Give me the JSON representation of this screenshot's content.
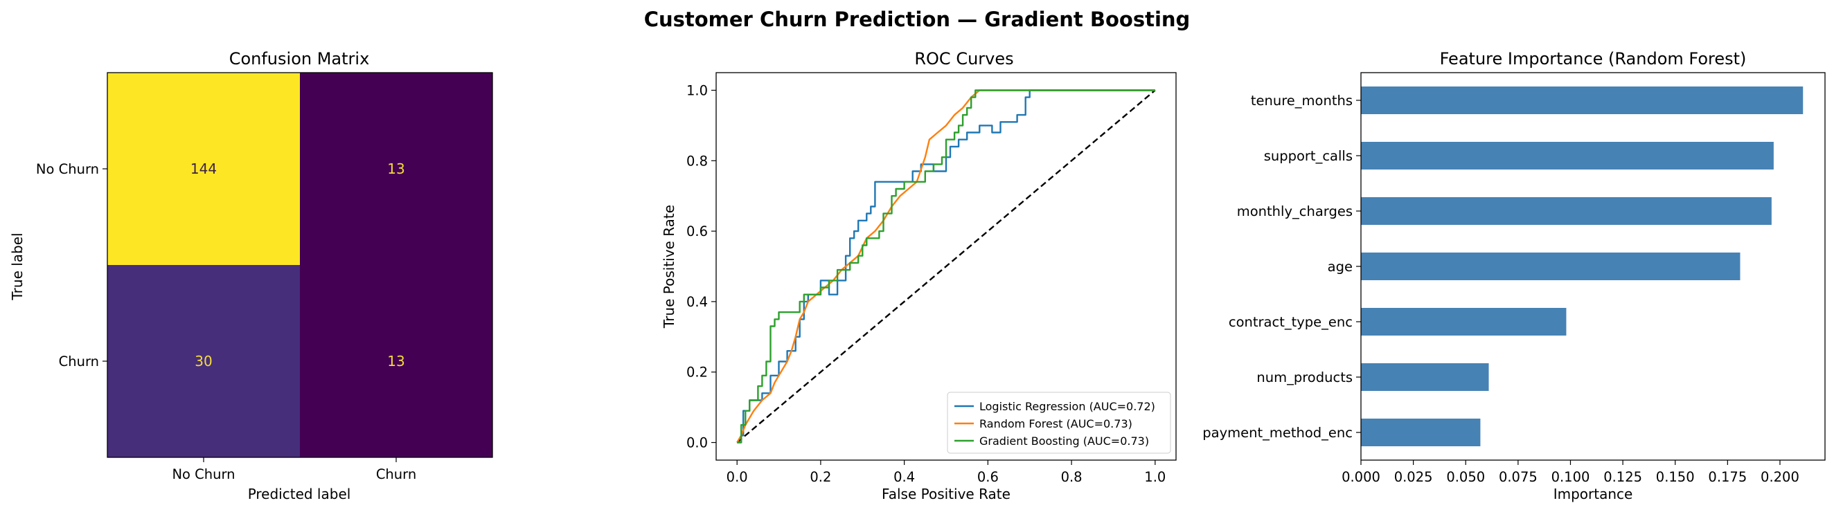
{
  "figure": {
    "title": "Customer Churn Prediction — Gradient Boosting"
  },
  "chart_data": [
    {
      "type": "heatmap",
      "title": "Confusion Matrix",
      "xlabel": "Predicted label",
      "ylabel": "True label",
      "row_labels": [
        "No Churn",
        "Churn"
      ],
      "col_labels": [
        "No Churn",
        "Churn"
      ],
      "values": [
        [
          144,
          13
        ],
        [
          30,
          13
        ]
      ],
      "colormap": "viridis",
      "vmin": 13,
      "vmax": 144
    },
    {
      "type": "line",
      "title": "ROC Curves",
      "xlabel": "False Positive Rate",
      "ylabel": "True Positive Rate",
      "xlim": [
        -0.05,
        1.05
      ],
      "ylim": [
        -0.05,
        1.05
      ],
      "xticks": [
        "0.0",
        "0.2",
        "0.4",
        "0.6",
        "0.8",
        "1.0"
      ],
      "yticks": [
        "0.0",
        "0.2",
        "0.4",
        "0.6",
        "0.8",
        "1.0"
      ],
      "legend_position": "lower-right",
      "diagonal": {
        "style": "dashed",
        "color": "#000000"
      },
      "series": [
        {
          "name": "Logistic Regression (AUC=0.72)",
          "color": "#1f77b4",
          "points": [
            [
              0,
              0
            ],
            [
              0.01,
              0
            ],
            [
              0.01,
              0.02
            ],
            [
              0.015,
              0.02
            ],
            [
              0.015,
              0.09
            ],
            [
              0.03,
              0.09
            ],
            [
              0.03,
              0.12
            ],
            [
              0.06,
              0.12
            ],
            [
              0.06,
              0.14
            ],
            [
              0.08,
              0.14
            ],
            [
              0.08,
              0.19
            ],
            [
              0.1,
              0.19
            ],
            [
              0.1,
              0.23
            ],
            [
              0.12,
              0.23
            ],
            [
              0.12,
              0.26
            ],
            [
              0.14,
              0.26
            ],
            [
              0.14,
              0.3
            ],
            [
              0.15,
              0.3
            ],
            [
              0.15,
              0.35
            ],
            [
              0.16,
              0.35
            ],
            [
              0.16,
              0.4
            ],
            [
              0.17,
              0.4
            ],
            [
              0.17,
              0.42
            ],
            [
              0.2,
              0.42
            ],
            [
              0.2,
              0.46
            ],
            [
              0.22,
              0.46
            ],
            [
              0.22,
              0.42
            ],
            [
              0.24,
              0.42
            ],
            [
              0.24,
              0.46
            ],
            [
              0.26,
              0.46
            ],
            [
              0.26,
              0.53
            ],
            [
              0.27,
              0.53
            ],
            [
              0.27,
              0.58
            ],
            [
              0.28,
              0.58
            ],
            [
              0.28,
              0.6
            ],
            [
              0.29,
              0.6
            ],
            [
              0.29,
              0.63
            ],
            [
              0.31,
              0.63
            ],
            [
              0.31,
              0.65
            ],
            [
              0.32,
              0.65
            ],
            [
              0.32,
              0.67
            ],
            [
              0.33,
              0.67
            ],
            [
              0.33,
              0.74
            ],
            [
              0.42,
              0.74
            ],
            [
              0.42,
              0.77
            ],
            [
              0.44,
              0.77
            ],
            [
              0.44,
              0.79
            ],
            [
              0.47,
              0.79
            ],
            [
              0.47,
              0.77
            ],
            [
              0.5,
              0.77
            ],
            [
              0.5,
              0.81
            ],
            [
              0.51,
              0.81
            ],
            [
              0.51,
              0.84
            ],
            [
              0.53,
              0.84
            ],
            [
              0.53,
              0.86
            ],
            [
              0.55,
              0.86
            ],
            [
              0.55,
              0.88
            ],
            [
              0.58,
              0.88
            ],
            [
              0.58,
              0.9
            ],
            [
              0.61,
              0.9
            ],
            [
              0.61,
              0.88
            ],
            [
              0.63,
              0.88
            ],
            [
              0.63,
              0.91
            ],
            [
              0.67,
              0.91
            ],
            [
              0.67,
              0.93
            ],
            [
              0.69,
              0.93
            ],
            [
              0.69,
              0.98
            ],
            [
              0.7,
              0.98
            ],
            [
              0.7,
              1.0
            ],
            [
              1.0,
              1.0
            ]
          ]
        },
        {
          "name": "Random Forest (AUC=0.73)",
          "color": "#ff7f0e",
          "points": [
            [
              0,
              0
            ],
            [
              0.01,
              0.02
            ],
            [
              0.02,
              0.05
            ],
            [
              0.04,
              0.09
            ],
            [
              0.06,
              0.12
            ],
            [
              0.08,
              0.14
            ],
            [
              0.09,
              0.17
            ],
            [
              0.1,
              0.19
            ],
            [
              0.12,
              0.23
            ],
            [
              0.13,
              0.26
            ],
            [
              0.14,
              0.3
            ],
            [
              0.15,
              0.35
            ],
            [
              0.16,
              0.37
            ],
            [
              0.17,
              0.4
            ],
            [
              0.19,
              0.42
            ],
            [
              0.21,
              0.44
            ],
            [
              0.23,
              0.46
            ],
            [
              0.25,
              0.49
            ],
            [
              0.27,
              0.51
            ],
            [
              0.29,
              0.53
            ],
            [
              0.31,
              0.58
            ],
            [
              0.33,
              0.6
            ],
            [
              0.35,
              0.63
            ],
            [
              0.37,
              0.67
            ],
            [
              0.39,
              0.7
            ],
            [
              0.41,
              0.72
            ],
            [
              0.43,
              0.74
            ],
            [
              0.45,
              0.81
            ],
            [
              0.46,
              0.86
            ],
            [
              0.48,
              0.88
            ],
            [
              0.5,
              0.9
            ],
            [
              0.52,
              0.93
            ],
            [
              0.54,
              0.95
            ],
            [
              0.56,
              0.98
            ],
            [
              0.58,
              1.0
            ],
            [
              1.0,
              1.0
            ]
          ]
        },
        {
          "name": "Gradient Boosting (AUC=0.73)",
          "color": "#2ca02c",
          "points": [
            [
              0,
              0
            ],
            [
              0.01,
              0
            ],
            [
              0.01,
              0.05
            ],
            [
              0.02,
              0.05
            ],
            [
              0.02,
              0.09
            ],
            [
              0.03,
              0.09
            ],
            [
              0.03,
              0.12
            ],
            [
              0.05,
              0.12
            ],
            [
              0.05,
              0.16
            ],
            [
              0.06,
              0.16
            ],
            [
              0.06,
              0.19
            ],
            [
              0.07,
              0.19
            ],
            [
              0.07,
              0.23
            ],
            [
              0.08,
              0.23
            ],
            [
              0.08,
              0.33
            ],
            [
              0.09,
              0.33
            ],
            [
              0.09,
              0.35
            ],
            [
              0.1,
              0.35
            ],
            [
              0.1,
              0.37
            ],
            [
              0.15,
              0.37
            ],
            [
              0.15,
              0.4
            ],
            [
              0.16,
              0.4
            ],
            [
              0.16,
              0.42
            ],
            [
              0.2,
              0.42
            ],
            [
              0.2,
              0.44
            ],
            [
              0.22,
              0.44
            ],
            [
              0.22,
              0.46
            ],
            [
              0.24,
              0.46
            ],
            [
              0.24,
              0.49
            ],
            [
              0.27,
              0.49
            ],
            [
              0.27,
              0.51
            ],
            [
              0.29,
              0.51
            ],
            [
              0.29,
              0.53
            ],
            [
              0.3,
              0.53
            ],
            [
              0.3,
              0.56
            ],
            [
              0.31,
              0.56
            ],
            [
              0.31,
              0.58
            ],
            [
              0.34,
              0.58
            ],
            [
              0.34,
              0.6
            ],
            [
              0.35,
              0.6
            ],
            [
              0.35,
              0.65
            ],
            [
              0.37,
              0.65
            ],
            [
              0.37,
              0.7
            ],
            [
              0.38,
              0.7
            ],
            [
              0.38,
              0.72
            ],
            [
              0.4,
              0.72
            ],
            [
              0.4,
              0.74
            ],
            [
              0.45,
              0.74
            ],
            [
              0.45,
              0.77
            ],
            [
              0.47,
              0.77
            ],
            [
              0.47,
              0.79
            ],
            [
              0.49,
              0.79
            ],
            [
              0.49,
              0.81
            ],
            [
              0.5,
              0.81
            ],
            [
              0.5,
              0.86
            ],
            [
              0.52,
              0.86
            ],
            [
              0.52,
              0.88
            ],
            [
              0.53,
              0.88
            ],
            [
              0.53,
              0.9
            ],
            [
              0.54,
              0.9
            ],
            [
              0.54,
              0.93
            ],
            [
              0.55,
              0.93
            ],
            [
              0.55,
              0.95
            ],
            [
              0.56,
              0.95
            ],
            [
              0.56,
              0.98
            ],
            [
              0.57,
              0.98
            ],
            [
              0.57,
              1.0
            ],
            [
              1.0,
              1.0
            ]
          ]
        }
      ]
    },
    {
      "type": "bar",
      "orientation": "horizontal",
      "title": "Feature Importance (Random Forest)",
      "xlabel": "Importance",
      "color": "#4682b4",
      "categories": [
        "tenure_months",
        "support_calls",
        "monthly_charges",
        "age",
        "contract_type_enc",
        "num_products",
        "payment_method_enc"
      ],
      "values": [
        0.211,
        0.197,
        0.196,
        0.181,
        0.098,
        0.061,
        0.057
      ],
      "xlim": [
        0.0,
        0.2215
      ],
      "xticks": [
        "0.000",
        "0.025",
        "0.050",
        "0.075",
        "0.100",
        "0.125",
        "0.150",
        "0.175",
        "0.200"
      ]
    }
  ]
}
